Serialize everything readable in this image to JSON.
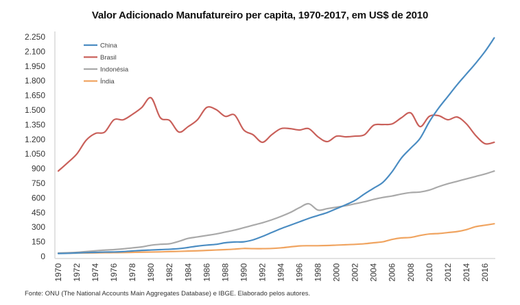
{
  "chart_data": {
    "type": "line",
    "title": "Valor Adicionado Manufatureiro per capita, 1970-2017, em US$ de 2010",
    "xlabel": "",
    "ylabel": "",
    "ylim": [
      0,
      2250
    ],
    "xlim": [
      1970,
      2017
    ],
    "yticks": [
      0,
      150,
      300,
      450,
      600,
      750,
      900,
      1050,
      1200,
      1350,
      1500,
      1650,
      1800,
      1950,
      2100,
      2250
    ],
    "ytick_labels": [
      "0",
      "150",
      "300",
      "450",
      "600",
      "750",
      "900",
      "1.050",
      "1.200",
      "1.350",
      "1.500",
      "1.650",
      "1.800",
      "1.950",
      "2.100",
      "2.250"
    ],
    "xtick_labels": [
      "1970",
      "1972",
      "1974",
      "1976",
      "1978",
      "1980",
      "1982",
      "1984",
      "1986",
      "1988",
      "1990",
      "1992",
      "1994",
      "1996",
      "1998",
      "2000",
      "2002",
      "2004",
      "2006",
      "2008",
      "2010",
      "2012",
      "2014",
      "2016"
    ],
    "grid": false,
    "legend_position": "top-left",
    "x": [
      1970,
      1971,
      1972,
      1973,
      1974,
      1975,
      1976,
      1977,
      1978,
      1979,
      1980,
      1981,
      1982,
      1983,
      1984,
      1985,
      1986,
      1987,
      1988,
      1989,
      1990,
      1991,
      1992,
      1993,
      1994,
      1995,
      1996,
      1997,
      1998,
      1999,
      2000,
      2001,
      2002,
      2003,
      2004,
      2005,
      2006,
      2007,
      2008,
      2009,
      2010,
      2011,
      2012,
      2013,
      2014,
      2015,
      2016,
      2017
    ],
    "series": [
      {
        "name": "China",
        "color": "#4a8cc2",
        "values": [
          30,
          32,
          36,
          40,
          42,
          45,
          46,
          50,
          56,
          62,
          66,
          70,
          74,
          80,
          92,
          106,
          116,
          124,
          140,
          148,
          150,
          170,
          205,
          245,
          285,
          320,
          355,
          390,
          420,
          450,
          490,
          530,
          575,
          640,
          700,
          760,
          870,
          1010,
          1110,
          1210,
          1380,
          1520,
          1640,
          1760,
          1870,
          1980,
          2100,
          2240
        ]
      },
      {
        "name": "Brasil",
        "color": "#c9605a",
        "values": [
          876,
          960,
          1051,
          1191,
          1261,
          1275,
          1401,
          1401,
          1457,
          1527,
          1626,
          1422,
          1394,
          1275,
          1331,
          1401,
          1527,
          1506,
          1436,
          1450,
          1296,
          1247,
          1170,
          1247,
          1310,
          1310,
          1296,
          1310,
          1226,
          1177,
          1233,
          1226,
          1233,
          1247,
          1345,
          1352,
          1359,
          1422,
          1471,
          1331,
          1436,
          1443,
          1401,
          1429,
          1359,
          1240,
          1156,
          1170
        ]
      },
      {
        "name": "Indonésia",
        "color": "#a9a9a9",
        "values": [
          35,
          38,
          42,
          50,
          58,
          65,
          70,
          78,
          88,
          98,
          115,
          125,
          130,
          155,
          185,
          200,
          215,
          230,
          250,
          270,
          295,
          320,
          345,
          375,
          410,
          450,
          500,
          540,
          475,
          490,
          505,
          520,
          540,
          560,
          585,
          605,
          620,
          640,
          655,
          660,
          680,
          715,
          745,
          770,
          795,
          820,
          845,
          875
        ]
      },
      {
        "name": "Índia",
        "color": "#f0a460",
        "values": [
          32,
          33,
          35,
          36,
          37,
          38,
          39,
          40,
          42,
          44,
          45,
          47,
          50,
          52,
          55,
          58,
          62,
          66,
          70,
          75,
          82,
          80,
          80,
          82,
          88,
          98,
          108,
          110,
          110,
          112,
          116,
          120,
          124,
          130,
          140,
          150,
          175,
          190,
          195,
          215,
          230,
          235,
          245,
          255,
          275,
          305,
          320,
          335
        ]
      }
    ]
  },
  "source_note": "Fonte: ONU (The National Accounts Main Aggregates Database) e IBGE. Elaborado pelos autores."
}
